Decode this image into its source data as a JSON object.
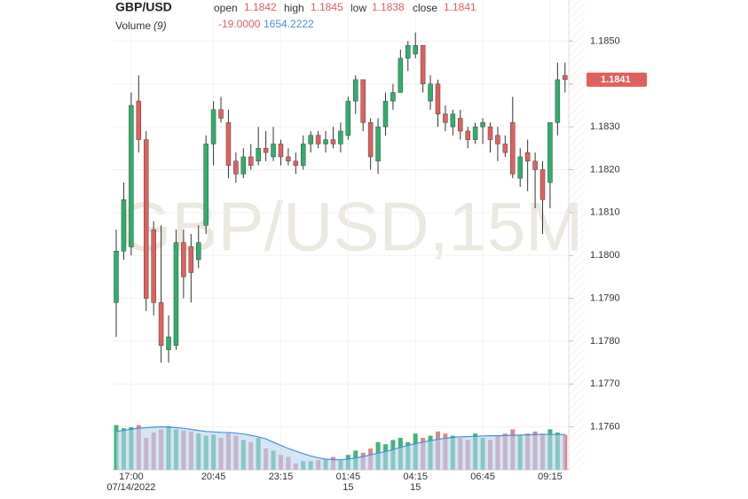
{
  "header": {
    "symbol": "GBP/USD",
    "open_label": "open",
    "open": "1.1842",
    "high_label": "high",
    "high": "1.1845",
    "low_label": "low",
    "low": "1.1838",
    "close_label": "close",
    "close": "1.1841",
    "volume_label": "Volume",
    "volume_period": "(9)",
    "volume_change": "-19.0000",
    "volume_ma": "1654.2222"
  },
  "chart_data": {
    "type": "candlestick",
    "watermark": "GBP/USD,15M",
    "categories": [
      null,
      null,
      "17:00",
      null,
      null,
      null,
      null,
      null,
      null,
      null,
      null,
      null,
      null,
      "20:45",
      null,
      null,
      null,
      null,
      null,
      null,
      null,
      null,
      "23:15",
      null,
      null,
      null,
      null,
      null,
      null,
      null,
      null,
      "01:45",
      null,
      null,
      null,
      null,
      null,
      null,
      null,
      null,
      "04:15",
      null,
      null,
      null,
      null,
      null,
      null,
      null,
      null,
      "06:45",
      null,
      null,
      null,
      null,
      null,
      null,
      null,
      null,
      "09:15",
      null,
      null
    ],
    "category_sublabels": [
      null,
      null,
      "07/14/2022",
      null,
      null,
      null,
      null,
      null,
      null,
      null,
      null,
      null,
      null,
      null,
      null,
      null,
      null,
      null,
      null,
      null,
      null,
      null,
      null,
      null,
      null,
      null,
      null,
      null,
      null,
      null,
      null,
      "15",
      null,
      null,
      null,
      null,
      null,
      null,
      null,
      null,
      "15",
      null,
      null,
      null,
      null,
      null,
      null,
      null,
      null,
      null,
      null,
      null,
      null,
      null,
      null,
      null,
      null,
      null,
      null,
      null,
      null
    ],
    "open": [
      1.1789,
      1.1801,
      1.1802,
      1.1836,
      1.1827,
      1.1806,
      1.1789,
      1.1778,
      1.1779,
      1.1803,
      1.1802,
      1.1799,
      1.1807,
      1.1826,
      1.1834,
      1.1831,
      1.1822,
      1.1819,
      1.1823,
      1.1822,
      1.1825,
      1.1823,
      1.1826,
      1.1823,
      1.1822,
      1.1821,
      1.1826,
      1.1828,
      1.1826,
      1.1827,
      1.1826,
      1.1828,
      1.1836,
      1.1841,
      1.1831,
      1.1822,
      1.183,
      1.1836,
      1.1838,
      1.1846,
      1.1847,
      1.1849,
      1.1836,
      1.184,
      1.1833,
      1.183,
      1.1832,
      1.1829,
      1.1827,
      1.183,
      1.183,
      1.1828,
      1.1826,
      1.1831,
      1.1818,
      1.1824,
      1.1822,
      1.182,
      1.1817,
      1.1831,
      1.1842
    ],
    "high": [
      1.1806,
      1.1817,
      1.1838,
      1.1842,
      1.1829,
      1.1808,
      1.1807,
      1.1786,
      1.1806,
      1.1806,
      1.1805,
      1.1807,
      1.1828,
      1.1836,
      1.1837,
      1.1834,
      1.1824,
      1.1825,
      1.1826,
      1.183,
      1.1829,
      1.183,
      1.1827,
      1.1825,
      1.1824,
      1.1828,
      1.1829,
      1.1829,
      1.1829,
      1.183,
      1.1831,
      1.1837,
      1.1842,
      1.1841,
      1.1832,
      1.1832,
      1.1838,
      1.184,
      1.1848,
      1.185,
      1.1852,
      1.1849,
      1.1842,
      1.1841,
      1.1835,
      1.1834,
      1.1834,
      1.183,
      1.1831,
      1.1832,
      1.1831,
      1.183,
      1.1828,
      1.1837,
      1.1825,
      1.1827,
      1.1824,
      1.1822,
      1.1831,
      1.1845,
      1.1845
    ],
    "low": [
      1.1781,
      1.1799,
      1.18,
      1.1824,
      1.1787,
      1.1786,
      1.1775,
      1.1775,
      1.1778,
      1.179,
      1.1789,
      1.1797,
      1.1805,
      1.1821,
      1.1831,
      1.1818,
      1.1817,
      1.1818,
      1.182,
      1.1821,
      1.1822,
      1.1822,
      1.1821,
      1.1821,
      1.1819,
      1.182,
      1.1824,
      1.1825,
      1.1824,
      1.1825,
      1.1824,
      1.1827,
      1.1833,
      1.1829,
      1.182,
      1.1819,
      1.1828,
      1.1834,
      1.1838,
      1.1843,
      1.1846,
      1.1838,
      1.1834,
      1.183,
      1.1829,
      1.1828,
      1.1827,
      1.1825,
      1.1826,
      1.1826,
      1.1824,
      1.1822,
      1.1823,
      1.1818,
      1.1816,
      1.1815,
      1.1811,
      1.1805,
      1.1811,
      1.1828,
      1.1838
    ],
    "close": [
      1.1801,
      1.1813,
      1.1835,
      1.1827,
      1.179,
      1.1789,
      1.1779,
      1.1781,
      1.1803,
      1.1795,
      1.1796,
      1.1803,
      1.1826,
      1.1834,
      1.1832,
      1.1821,
      1.1819,
      1.1823,
      1.1821,
      1.1825,
      1.1824,
      1.1826,
      1.1823,
      1.1822,
      1.1821,
      1.1826,
      1.1828,
      1.1826,
      1.1827,
      1.1826,
      1.1829,
      1.1836,
      1.1841,
      1.1831,
      1.1823,
      1.183,
      1.1836,
      1.1838,
      1.1846,
      1.1849,
      1.1849,
      1.184,
      1.184,
      1.1833,
      1.1831,
      1.1833,
      1.1829,
      1.1827,
      1.183,
      1.1831,
      1.1827,
      1.1826,
      1.1824,
      1.1819,
      1.1823,
      1.1822,
      1.182,
      1.1813,
      1.1831,
      1.1841,
      1.1841
    ],
    "volume": [
      2100,
      1950,
      2000,
      2100,
      1500,
      1750,
      1900,
      2050,
      1900,
      1850,
      1800,
      1700,
      1600,
      1650,
      1500,
      1700,
      1600,
      1400,
      1300,
      1500,
      1000,
      900,
      700,
      600,
      300,
      400,
      400,
      450,
      500,
      600,
      450,
      700,
      900,
      800,
      1000,
      1300,
      1200,
      1400,
      1500,
      1300,
      1700,
      1500,
      1600,
      1800,
      1700,
      1600,
      1500,
      1400,
      1700,
      1500,
      1400,
      1600,
      1700,
      1900,
      1600,
      1700,
      1800,
      1700,
      1900,
      1750,
      1650
    ],
    "volume_ma": [
      1800,
      1850,
      1900,
      1950,
      1980,
      2000,
      2020,
      2000,
      1980,
      1950,
      1900,
      1850,
      1800,
      1780,
      1760,
      1750,
      1720,
      1680,
      1620,
      1550,
      1450,
      1300,
      1150,
      1000,
      880,
      760,
      650,
      560,
      500,
      480,
      470,
      500,
      560,
      620,
      700,
      780,
      860,
      950,
      1050,
      1150,
      1230,
      1300,
      1370,
      1430,
      1480,
      1520,
      1550,
      1560,
      1570,
      1590,
      1600,
      1600,
      1610,
      1620,
      1630,
      1640,
      1650,
      1660,
      1660,
      1660,
      1654.2222
    ],
    "up_color": "#2eaf6d",
    "down_color": "#e0605e",
    "volume_up_color": "#41b47a",
    "volume_down_color": "#d9888f",
    "ma_color": "#4a8fd9",
    "ma_fill": "#b9d3f0",
    "ylim": [
      1.175,
      1.186
    ],
    "volume_lim": [
      0,
      2500
    ],
    "yticks": [
      {
        "value": 1.185,
        "label": "1.1850"
      },
      {
        "value": 1.184,
        "label": "1.1840"
      },
      {
        "value": 1.183,
        "label": "1.1830"
      },
      {
        "value": 1.182,
        "label": "1.1820"
      },
      {
        "value": 1.181,
        "label": "1.1810"
      },
      {
        "value": 1.18,
        "label": "1.1800"
      },
      {
        "value": 1.179,
        "label": "1.1790"
      },
      {
        "value": 1.178,
        "label": "1.1780"
      },
      {
        "value": 1.177,
        "label": "1.1770"
      },
      {
        "value": 1.176,
        "label": "1.1760"
      }
    ],
    "grid": true
  }
}
